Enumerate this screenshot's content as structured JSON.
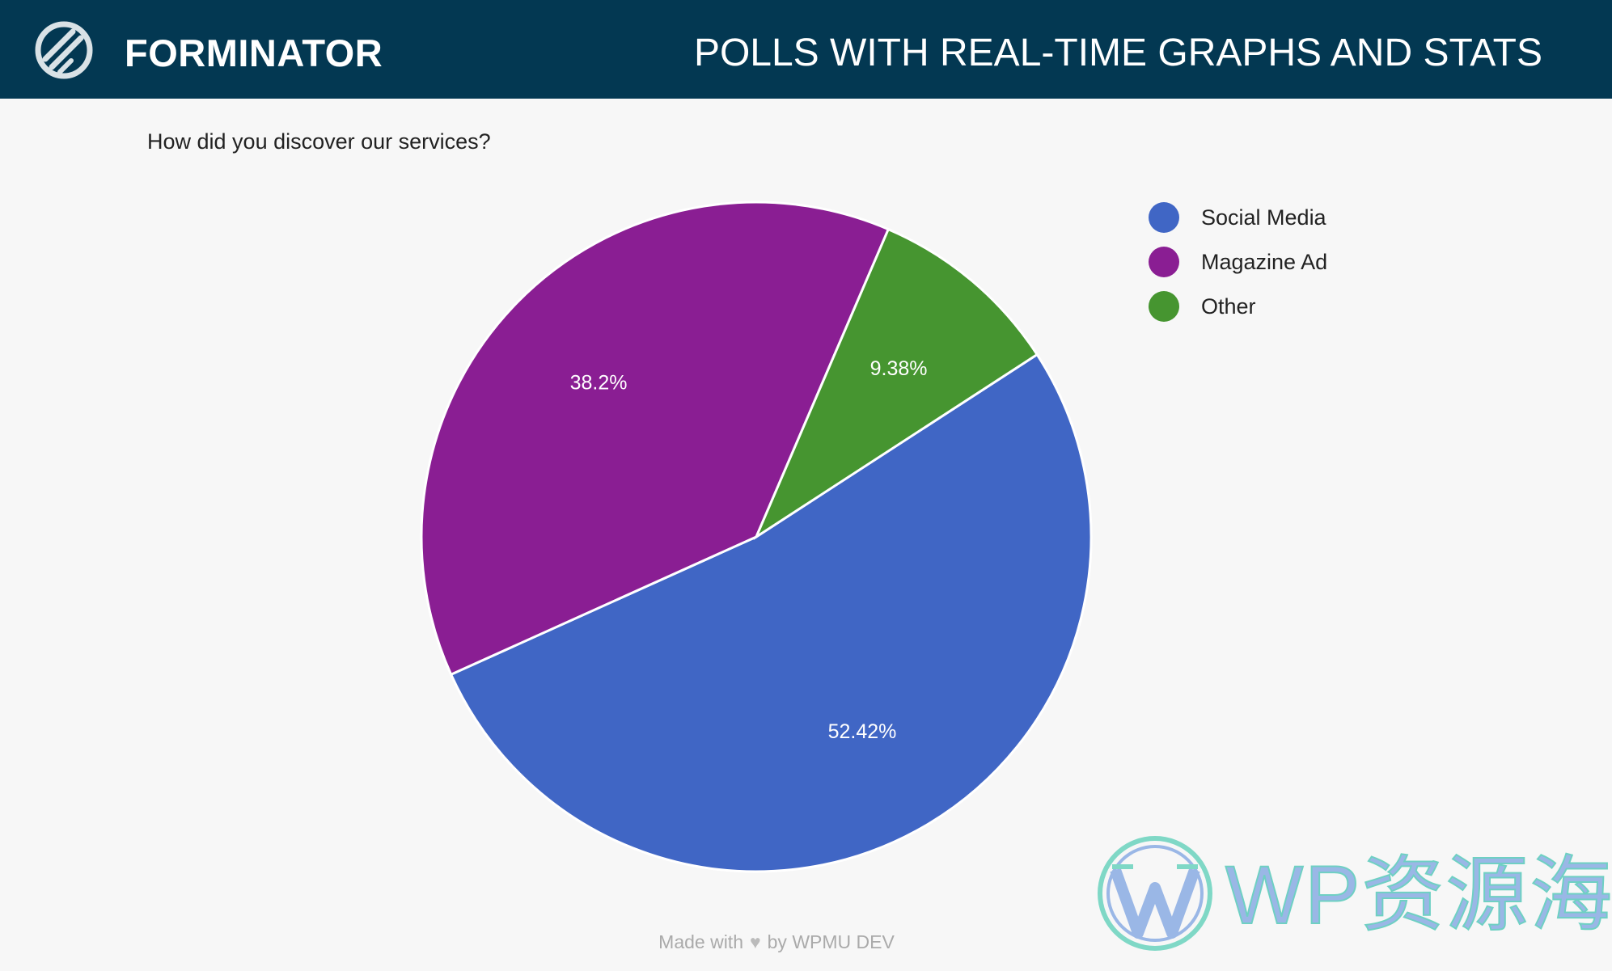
{
  "header": {
    "brand": "FORMINATOR",
    "tagline": "POLLS WITH REAL-TIME GRAPHS AND STATS"
  },
  "colors": {
    "header_bg": "#033852",
    "page_bg": "#f7f7f7",
    "social_media": "#4066c5",
    "magazine_ad": "#8a1e93",
    "other": "#469530"
  },
  "chart_data": {
    "type": "pie",
    "title": "How did you discover our services?",
    "categories": [
      "Social Media",
      "Magazine Ad",
      "Other"
    ],
    "values": [
      52.42,
      38.2,
      9.38
    ],
    "data_labels": [
      "52.42%",
      "38.2%",
      "9.38%"
    ],
    "colors": [
      "#4066c5",
      "#8a1e93",
      "#469530"
    ],
    "legend_position": "right"
  },
  "footer": {
    "made_with": "Made with",
    "by": "by WPMU DEV"
  },
  "watermark": {
    "text": "WP资源海"
  }
}
